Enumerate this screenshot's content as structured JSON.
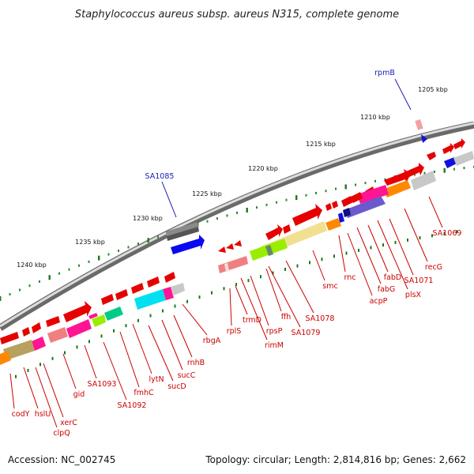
{
  "title": "Staphylococcus aureus subsp. aureus N315, complete genome",
  "footer": {
    "accession": "Accession: NC_002745",
    "summary": "Topology: circular; Length: 2,814,816 bp; Genes: 2,662"
  },
  "scale_labels": [
    "1205 kbp",
    "1210 kbp",
    "1215 kbp",
    "1220 kbp",
    "1225 kbp",
    "1230 kbp",
    "1235 kbp",
    "1240 kbp"
  ],
  "colors": {
    "backbone": "#8a8a8a",
    "forward_gene": "#e60000",
    "label_red": "#cc0000",
    "label_blue": "#1a1ab8",
    "tick_green": "#1a7a1a"
  },
  "gene_labels": [
    {
      "name": "rpmB",
      "color": "blue"
    },
    {
      "name": "SA1085",
      "color": "blue"
    },
    {
      "name": "SA1069",
      "color": "red"
    },
    {
      "name": "recG",
      "color": "red"
    },
    {
      "name": "SA1071",
      "color": "red"
    },
    {
      "name": "plsX",
      "color": "red"
    },
    {
      "name": "fabD",
      "color": "red"
    },
    {
      "name": "fabG",
      "color": "red"
    },
    {
      "name": "acpP",
      "color": "red"
    },
    {
      "name": "rnc",
      "color": "red"
    },
    {
      "name": "smc",
      "color": "red"
    },
    {
      "name": "SA1078",
      "color": "red"
    },
    {
      "name": "SA1079",
      "color": "red"
    },
    {
      "name": "ffh",
      "color": "red"
    },
    {
      "name": "rpsP",
      "color": "red"
    },
    {
      "name": "rimM",
      "color": "red"
    },
    {
      "name": "trmD",
      "color": "red"
    },
    {
      "name": "rplS",
      "color": "red"
    },
    {
      "name": "rbgA",
      "color": "red"
    },
    {
      "name": "rnhB",
      "color": "red"
    },
    {
      "name": "sucC",
      "color": "red"
    },
    {
      "name": "sucD",
      "color": "red"
    },
    {
      "name": "lytN",
      "color": "red"
    },
    {
      "name": "fmhC",
      "color": "red"
    },
    {
      "name": "SA1092",
      "color": "red"
    },
    {
      "name": "SA1093",
      "color": "red"
    },
    {
      "name": "gid",
      "color": "red"
    },
    {
      "name": "xerC",
      "color": "red"
    },
    {
      "name": "clpQ",
      "color": "red"
    },
    {
      "name": "hslU",
      "color": "red"
    },
    {
      "name": "codY",
      "color": "red"
    }
  ]
}
